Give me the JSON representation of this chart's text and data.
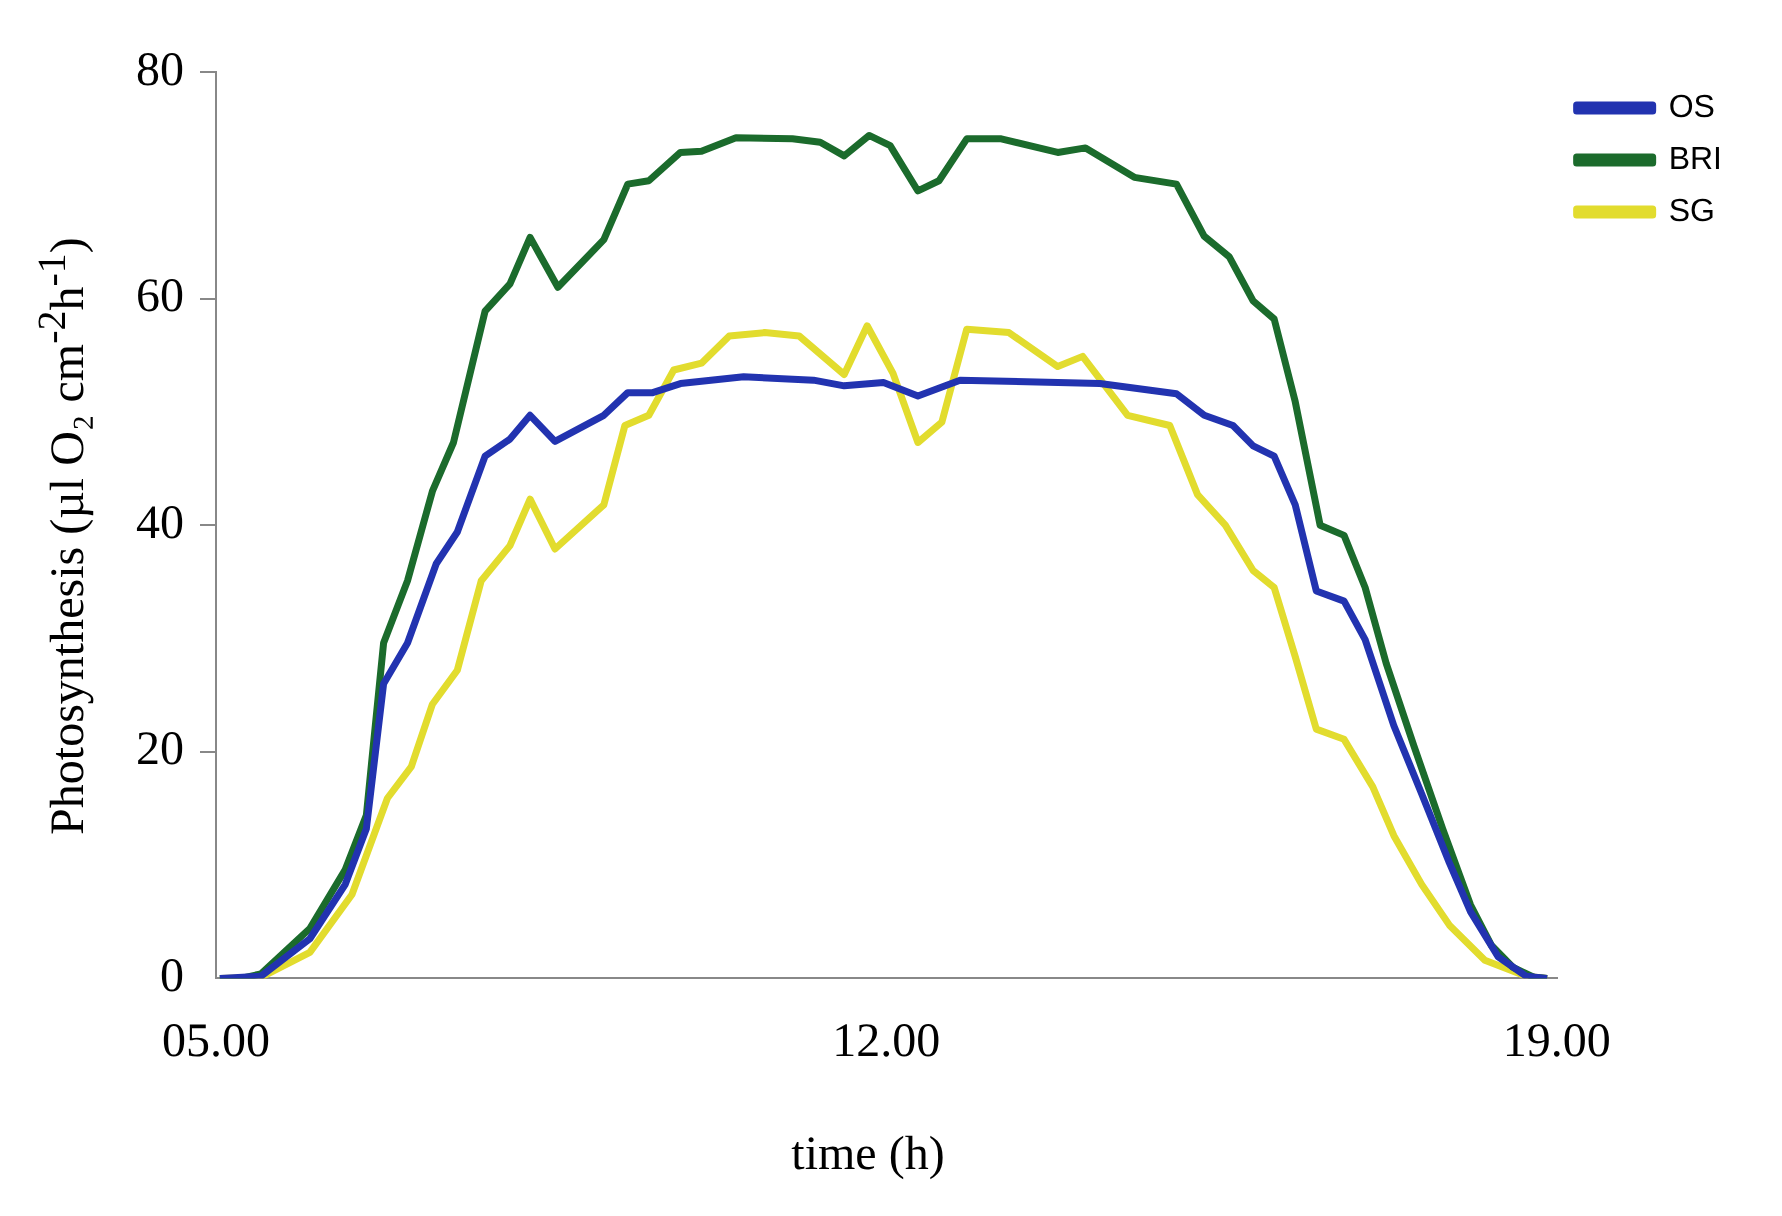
{
  "chart_data": {
    "type": "line",
    "xlabel": "time (h)",
    "ylabel": "Photosynthesis (µl O₂ cm$^{-2}$h$^{-1}$)",
    "xlim": [
      5,
      19
    ],
    "xticks": [
      {
        "value": 5,
        "label": "05.00"
      },
      {
        "value": 12,
        "label": "12.00"
      },
      {
        "value": 19,
        "label": "19.00"
      }
    ],
    "ylim": [
      0,
      80
    ],
    "yticks": [
      0,
      20,
      40,
      60,
      80
    ],
    "grid": false,
    "legend": "top right",
    "marker": "none",
    "line_style": "solid",
    "series": [
      {
        "name": "OS",
        "color": "#2233b0",
        "x": [
          5.04,
          5.47,
          5.98,
          6.35,
          6.57,
          6.75,
          7.0,
          7.3,
          7.52,
          7.81,
          8.07,
          8.28,
          8.54,
          9.05,
          9.3,
          9.56,
          9.85,
          10.51,
          11.24,
          11.56,
          11.97,
          12.33,
          12.77,
          14.23,
          15.03,
          15.32,
          15.62,
          15.83,
          16.05,
          16.27,
          16.49,
          16.78,
          17.0,
          17.3,
          17.59,
          17.88,
          18.1,
          18.39,
          18.68,
          18.9
        ],
        "values": [
          0,
          0.2,
          3.5,
          8.3,
          13.2,
          26,
          29.6,
          36.6,
          39.4,
          46.1,
          47.6,
          49.7,
          47.4,
          49.7,
          51.7,
          51.7,
          52.5,
          53.1,
          52.8,
          52.3,
          52.6,
          51.4,
          52.8,
          52.5,
          51.6,
          49.7,
          48.8,
          47,
          46.1,
          41.8,
          34.2,
          33.3,
          29.9,
          22.3,
          16.3,
          10.2,
          5.9,
          1.9,
          0.2,
          0
        ]
      },
      {
        "name": "BRI",
        "color": "#1b6b2c",
        "x": [
          5.04,
          5.26,
          5.47,
          5.98,
          6.35,
          6.57,
          6.75,
          7.0,
          7.26,
          7.48,
          7.81,
          8.07,
          8.28,
          8.57,
          9.05,
          9.3,
          9.52,
          9.85,
          10.07,
          10.43,
          11.02,
          11.31,
          11.56,
          11.82,
          12.04,
          12.33,
          12.55,
          12.84,
          13.2,
          13.79,
          14.08,
          14.59,
          15.03,
          15.32,
          15.58,
          15.83,
          16.05,
          16.27,
          16.53,
          16.78,
          17.0,
          17.22,
          17.51,
          17.81,
          18.1,
          18.32,
          18.54,
          18.76,
          18.9
        ],
        "values": [
          0,
          0,
          0.4,
          4.4,
          9.6,
          14.4,
          29.6,
          35.1,
          43,
          47.3,
          58.9,
          61.3,
          65.4,
          61,
          65.2,
          70.1,
          70.4,
          72.9,
          73,
          74.2,
          74.1,
          73.8,
          72.6,
          74.4,
          73.5,
          69.5,
          70.4,
          74.1,
          74.1,
          72.9,
          73.3,
          70.7,
          70.1,
          65.5,
          63.7,
          59.8,
          58.2,
          50.9,
          40,
          39.1,
          34.5,
          27.8,
          20.5,
          13.2,
          6.5,
          2.9,
          1,
          0.1,
          0
        ]
      },
      {
        "name": "SG",
        "color": "#e2dc2e",
        "x": [
          5.04,
          5.47,
          5.98,
          6.42,
          6.79,
          7.04,
          7.26,
          7.52,
          7.77,
          8.07,
          8.28,
          8.54,
          9.05,
          9.27,
          9.52,
          9.78,
          10.07,
          10.36,
          10.73,
          11.09,
          11.56,
          11.8,
          12.07,
          12.33,
          12.58,
          12.84,
          13.28,
          13.79,
          14.05,
          14.52,
          14.96,
          15.25,
          15.54,
          15.83,
          16.05,
          16.27,
          16.49,
          16.78,
          17.08,
          17.3,
          17.59,
          17.88,
          18.25,
          18.68,
          18.9
        ],
        "values": [
          0,
          0.1,
          2.3,
          7.4,
          15.9,
          18.7,
          24.2,
          27.2,
          35.1,
          38.2,
          42.3,
          37.9,
          41.8,
          48.8,
          49.7,
          53.7,
          54.3,
          56.7,
          57,
          56.7,
          53.3,
          57.6,
          53.4,
          47.3,
          49.1,
          57.3,
          57,
          54,
          54.9,
          49.7,
          48.8,
          42.7,
          40,
          36,
          34.5,
          28.4,
          22,
          21.1,
          16.9,
          12.6,
          8.3,
          4.7,
          1.6,
          0.2,
          0
        ]
      }
    ]
  }
}
